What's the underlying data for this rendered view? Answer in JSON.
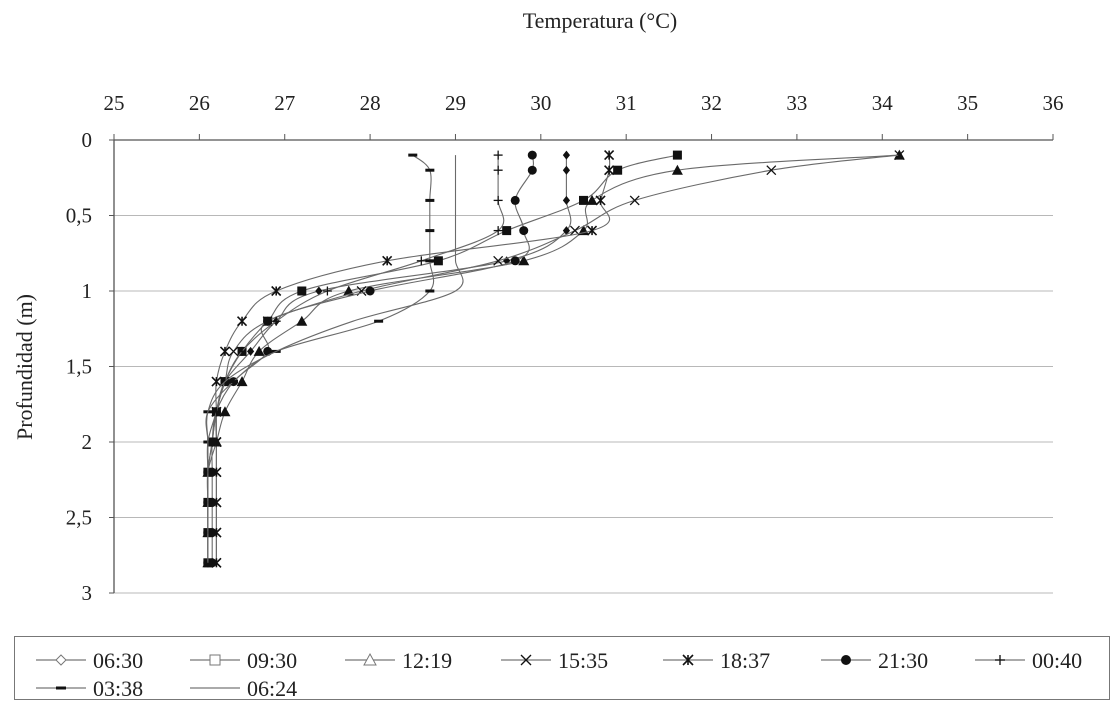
{
  "chart_data": {
    "type": "line",
    "xlabel": "Temperatura (°C)",
    "ylabel": "Profundidad (m)",
    "x_axis_position": "top",
    "y_axis_inverted": true,
    "xlim": [
      25,
      36
    ],
    "ylim": [
      0,
      3
    ],
    "x_ticks": [
      25,
      26,
      27,
      28,
      29,
      30,
      31,
      32,
      33,
      34,
      35,
      36
    ],
    "x_tick_labels": [
      "25",
      "26",
      "27",
      "28",
      "29",
      "30",
      "31",
      "32",
      "33",
      "34",
      "35",
      "36"
    ],
    "y_ticks": [
      0,
      0.5,
      1,
      1.5,
      2,
      2.5,
      3
    ],
    "y_tick_labels": [
      "0",
      "0,5",
      "1",
      "1,5",
      "2",
      "2,5",
      "3"
    ],
    "grid": "horizontal",
    "legend_position": "bottom",
    "depths": [
      0.1,
      0.2,
      0.4,
      0.6,
      0.8,
      1.0,
      1.2,
      1.4,
      1.6,
      1.8,
      2.0,
      2.2,
      2.4,
      2.6,
      2.8
    ],
    "series": [
      {
        "name": "06:30",
        "marker": "diamond",
        "x": [
          30.3,
          30.3,
          30.3,
          30.3,
          29.6,
          27.4,
          26.9,
          26.6,
          26.3,
          26.2,
          26.15,
          26.1,
          26.1,
          26.1,
          26.1
        ]
      },
      {
        "name": "09:30",
        "marker": "square",
        "x": [
          31.6,
          30.9,
          30.5,
          29.6,
          28.8,
          27.2,
          26.8,
          26.5,
          26.3,
          26.2,
          26.15,
          26.1,
          26.1,
          26.1,
          26.1
        ]
      },
      {
        "name": "12:19",
        "marker": "triangle",
        "x": [
          34.2,
          31.6,
          30.6,
          30.5,
          29.8,
          27.75,
          27.2,
          26.7,
          26.5,
          26.3,
          26.2,
          26.1,
          26.1,
          26.1,
          26.1
        ]
      },
      {
        "name": "15:35",
        "marker": "x",
        "x": [
          34.2,
          32.7,
          31.1,
          30.4,
          29.5,
          27.9,
          26.8,
          26.4,
          26.3,
          26.2,
          26.2,
          26.2,
          26.2,
          26.2,
          26.2
        ]
      },
      {
        "name": "18:37",
        "marker": "star",
        "x": [
          30.8,
          30.8,
          30.7,
          30.6,
          28.2,
          26.9,
          26.5,
          26.3,
          26.2,
          26.2,
          26.2,
          26.2,
          26.2,
          26.2,
          26.2
        ]
      },
      {
        "name": "21:30",
        "marker": "circle",
        "x": [
          29.9,
          29.9,
          29.7,
          29.8,
          29.7,
          28.0,
          26.8,
          26.8,
          26.4,
          26.2,
          26.15,
          26.15,
          26.15,
          26.15,
          26.15
        ]
      },
      {
        "name": "00:40",
        "marker": "plus",
        "x": [
          29.5,
          29.5,
          29.5,
          29.5,
          28.6,
          27.5,
          26.9,
          26.5,
          26.3,
          26.2,
          26.1,
          26.1,
          26.1,
          26.1,
          26.1
        ]
      },
      {
        "name": "03:38",
        "marker": "dash",
        "x": [
          28.5,
          28.7,
          28.7,
          28.7,
          28.7,
          28.7,
          28.1,
          26.9,
          26.4,
          26.1,
          26.1,
          26.1,
          26.1,
          26.1,
          26.1
        ]
      },
      {
        "name": "06:24",
        "marker": "none",
        "x": [
          29.0,
          29.0,
          29.0,
          29.0,
          29.0,
          29.0,
          27.8,
          26.9,
          26.3,
          26.1,
          26.1,
          26.1,
          26.1,
          26.1,
          26.1
        ]
      }
    ]
  }
}
